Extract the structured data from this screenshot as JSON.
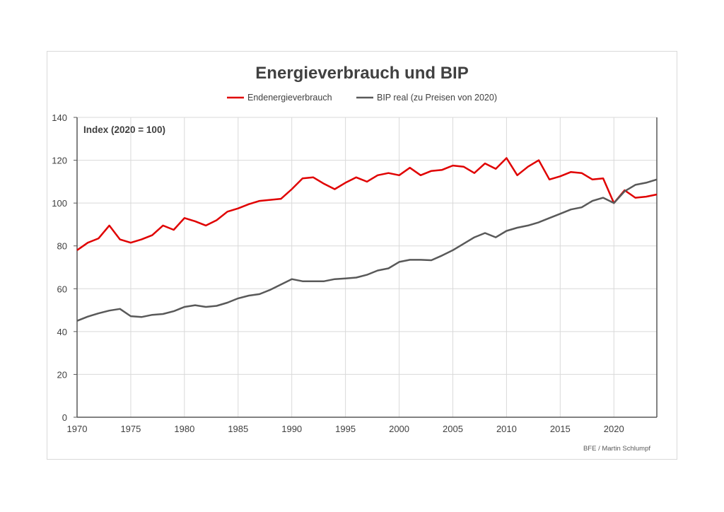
{
  "chart_data": {
    "type": "line",
    "title": "Energieverbrauch und BIP",
    "annotation": "Index (2020 = 100)",
    "credit": "BFE / Martin Schlumpf",
    "xlabel": "",
    "ylabel": "",
    "xlim": [
      1970,
      2024
    ],
    "ylim": [
      0,
      140
    ],
    "x_ticks": [
      1970,
      1975,
      1980,
      1985,
      1990,
      1995,
      2000,
      2005,
      2010,
      2015,
      2020
    ],
    "y_ticks": [
      0,
      20,
      40,
      60,
      80,
      100,
      120,
      140
    ],
    "grid": true,
    "legend_position": "top",
    "x": [
      1970,
      1971,
      1972,
      1973,
      1974,
      1975,
      1976,
      1977,
      1978,
      1979,
      1980,
      1981,
      1982,
      1983,
      1984,
      1985,
      1986,
      1987,
      1988,
      1989,
      1990,
      1991,
      1992,
      1993,
      1994,
      1995,
      1996,
      1997,
      1998,
      1999,
      2000,
      2001,
      2002,
      2003,
      2004,
      2005,
      2006,
      2007,
      2008,
      2009,
      2010,
      2011,
      2012,
      2013,
      2014,
      2015,
      2016,
      2017,
      2018,
      2019,
      2020,
      2021,
      2022,
      2023,
      2024
    ],
    "series": [
      {
        "name": "Endenergieverbrauch",
        "color": "#e00000",
        "values": [
          78,
          81.5,
          83.5,
          89.5,
          83,
          81.5,
          83,
          85,
          89.5,
          87.5,
          93,
          91.5,
          89.5,
          92,
          96,
          97.5,
          99.5,
          101,
          101.5,
          102,
          106.5,
          111.5,
          112,
          109,
          106.5,
          109.5,
          112,
          110,
          113,
          114,
          113,
          116.5,
          113,
          115,
          115.5,
          117.5,
          117,
          114,
          118.5,
          116,
          121,
          113,
          117,
          120,
          111,
          112.5,
          114.5,
          114,
          111,
          111.5,
          100,
          106,
          102.5,
          103,
          104
        ]
      },
      {
        "name": "BIP real (zu Preisen von 2020)",
        "color": "#595959",
        "values": [
          45,
          47,
          48.5,
          49.8,
          50.6,
          47.2,
          46.8,
          47.8,
          48.2,
          49.5,
          51.5,
          52.3,
          51.5,
          52,
          53.5,
          55.5,
          56.8,
          57.5,
          59.5,
          62,
          64.5,
          63.5,
          63.5,
          63.5,
          64.5,
          64.8,
          65.2,
          66.5,
          68.5,
          69.5,
          72.5,
          73.5,
          73.5,
          73.3,
          75.5,
          78,
          81,
          84,
          86,
          84,
          87,
          88.5,
          89.5,
          91,
          93,
          95,
          97,
          98,
          101,
          102.5,
          100,
          105.5,
          108.5,
          109.5,
          111
        ]
      }
    ]
  }
}
